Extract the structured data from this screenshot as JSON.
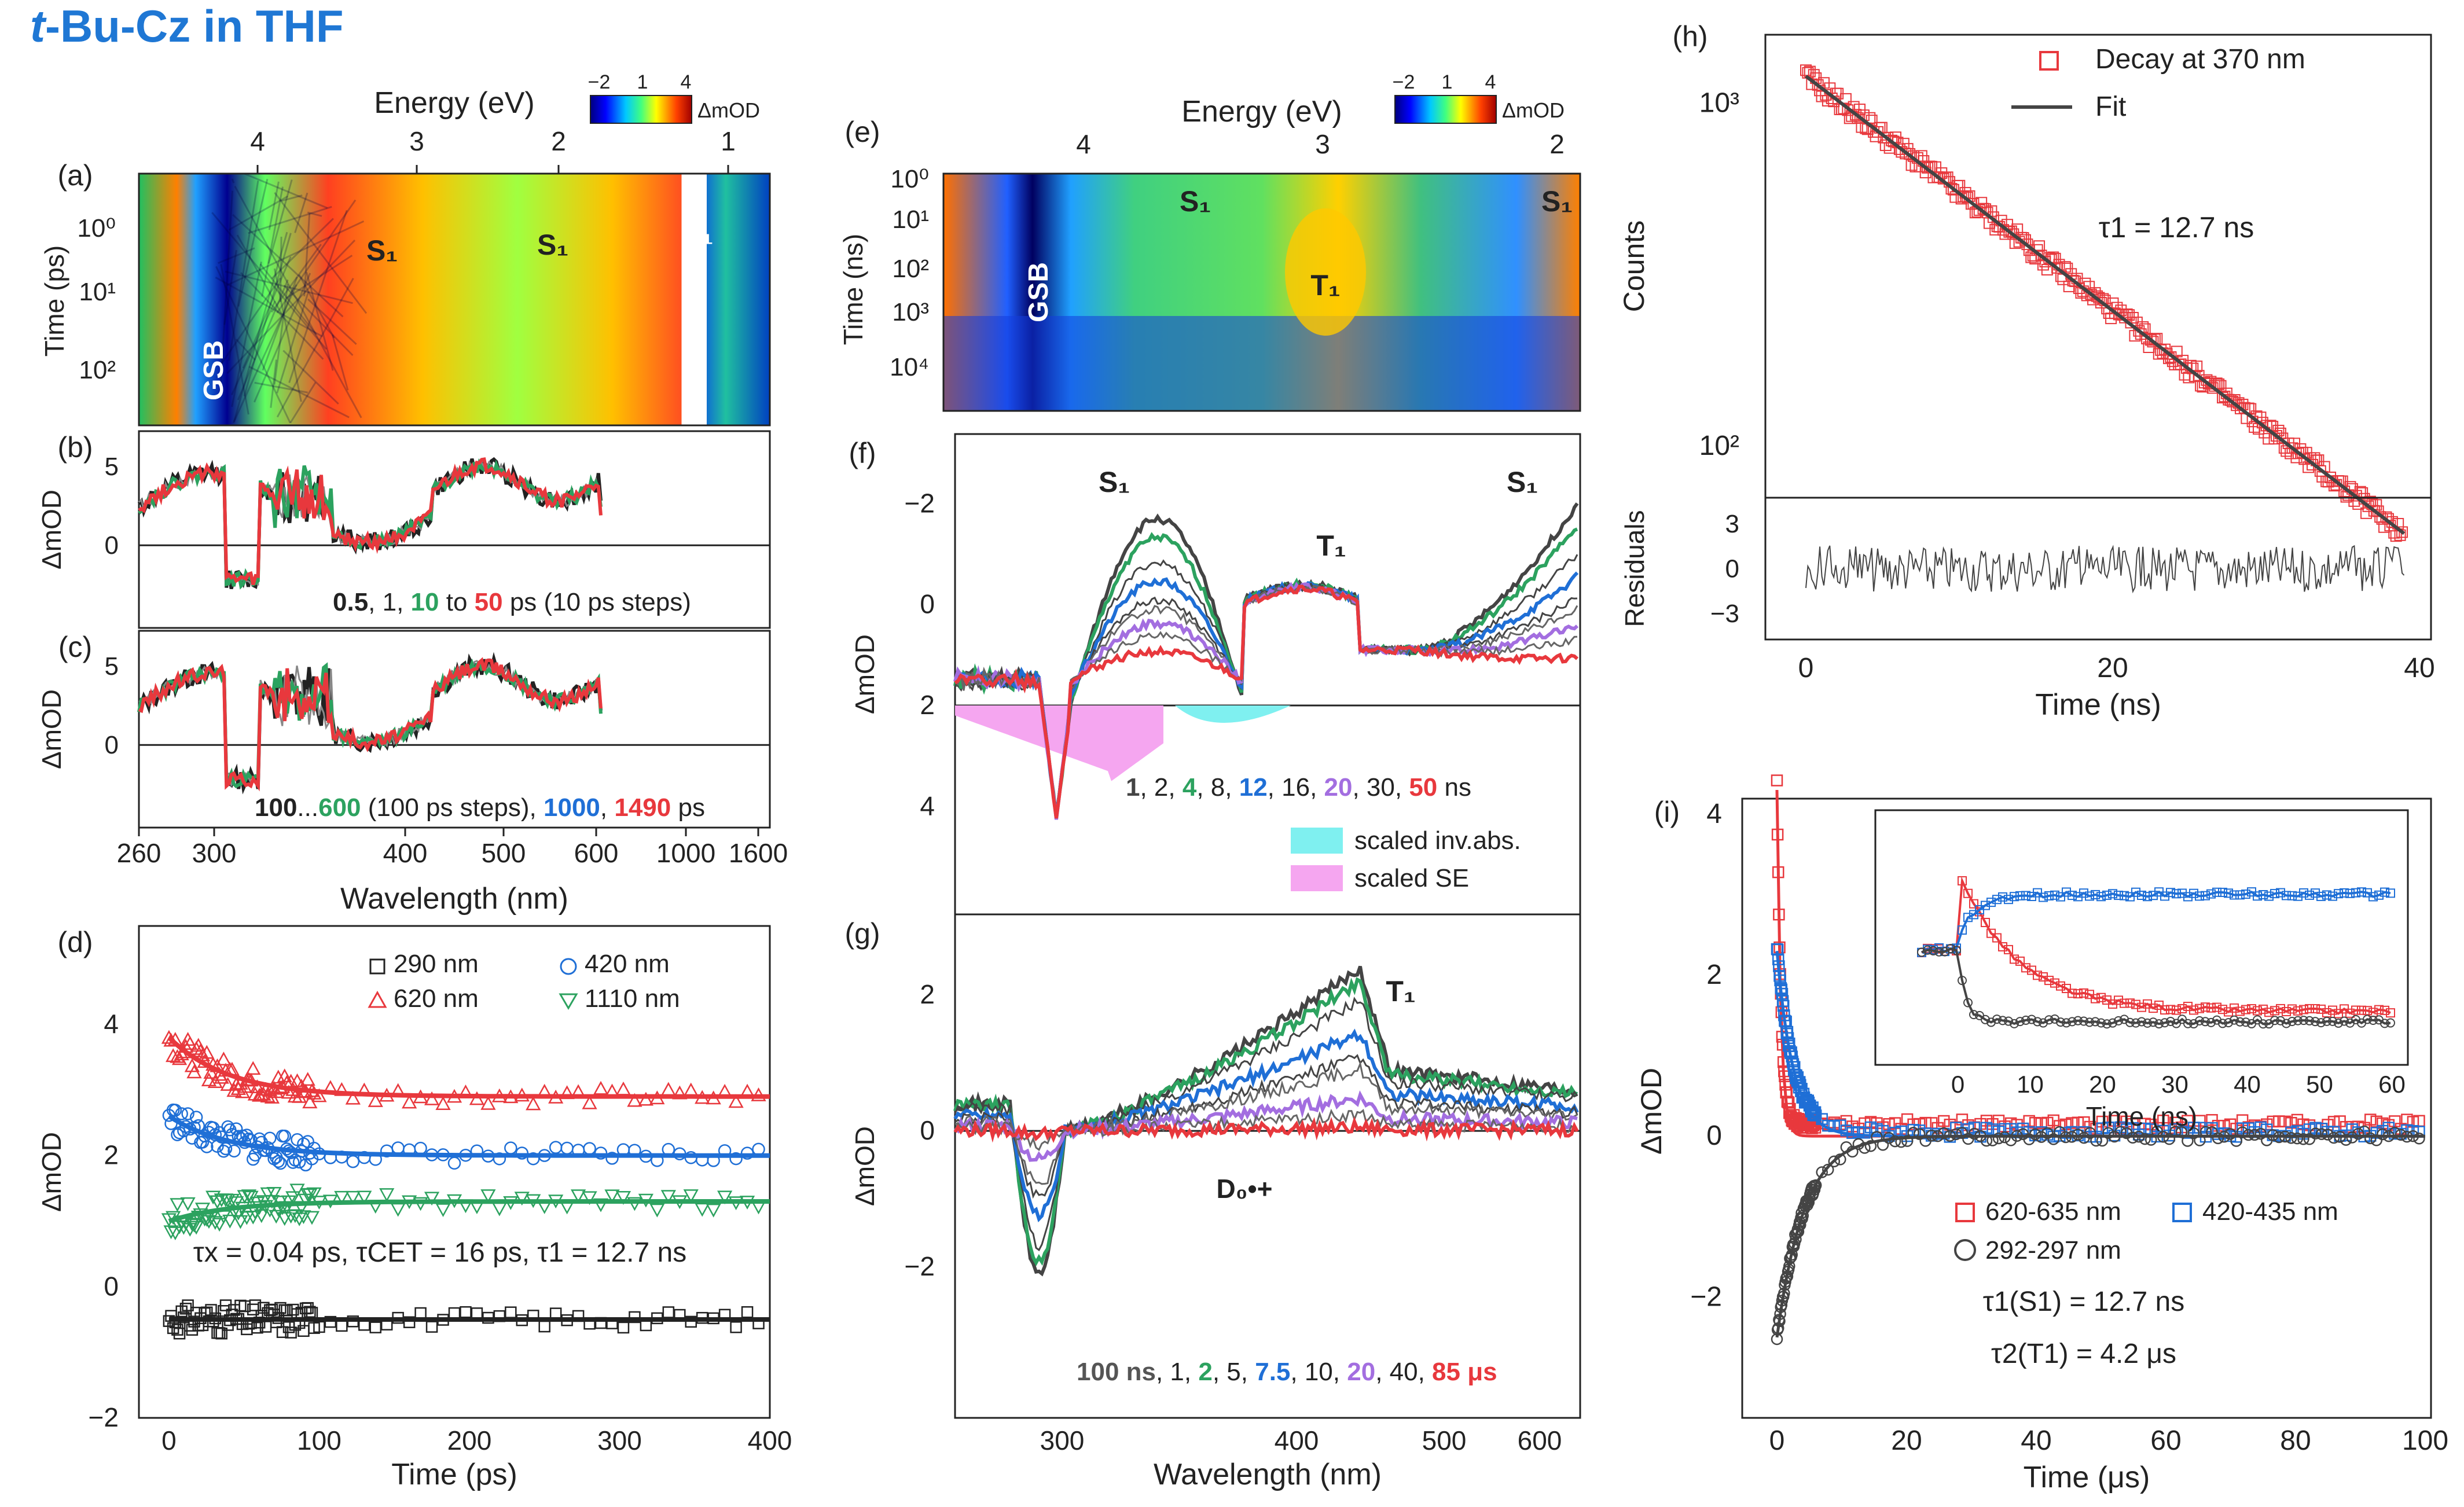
{
  "title_italic": "t",
  "title_rest": "-Bu-Cz in THF",
  "colors": {
    "black": "#222222",
    "red": "#e8383d",
    "green": "#2ca25f",
    "blue": "#1f6fd6",
    "purple": "#a36ee0",
    "grey": "#888888",
    "fit": "#444444",
    "inv": "#7ff0f0",
    "se": "#f5a6f0"
  },
  "chart_data": [
    {
      "panel": "(a)",
      "type": "heatmap",
      "title": "",
      "top_axis_label": "Energy (eV)",
      "top_ticks": [
        "4",
        "3",
        "2",
        "1"
      ],
      "ylabel": "Time (ps)",
      "y_ticks": [
        "10⁰",
        "10¹",
        "10²"
      ],
      "colorbar_label": "ΔmOD",
      "colorbar_ticks": [
        "−2",
        "1",
        "4"
      ],
      "annotations": [
        "GSB",
        "S₁",
        "S₁",
        "S₁"
      ]
    },
    {
      "panel": "(b)",
      "type": "line",
      "ylabel": "ΔmOD",
      "y_ticks": [
        "0",
        "5"
      ],
      "legend": "0.5, 1, 10 to 50 ps (10 ps steps)",
      "legend_parts": [
        "0.5",
        ", 1, ",
        "10",
        " to ",
        "50",
        " ps (10 ps steps)"
      ]
    },
    {
      "panel": "(c)",
      "type": "line",
      "ylabel": "ΔmOD",
      "y_ticks": [
        "0",
        "5"
      ],
      "xlabel": "Wavelength (nm)",
      "x_ticks": [
        "260",
        "300",
        "400",
        "500",
        "600",
        "1000",
        "1600"
      ],
      "legend_parts": [
        "100",
        "...",
        "600",
        " (100 ps steps), ",
        "1000",
        ", ",
        "1490",
        " ps"
      ]
    },
    {
      "panel": "(d)",
      "type": "scatter",
      "xlabel": "Time (ps)",
      "ylabel": "ΔmOD",
      "xlim": [
        -20,
        400
      ],
      "ylim": [
        -2,
        5.5
      ],
      "x_ticks": [
        "0",
        "100",
        "200",
        "300",
        "400"
      ],
      "y_ticks": [
        "−2",
        "0",
        "2",
        "4"
      ],
      "series": [
        {
          "name": "290 nm",
          "plateau": -0.5
        },
        {
          "name": "620 nm",
          "plateau": 2.9
        },
        {
          "name": "420 nm",
          "plateau": 2.0
        },
        {
          "name": "1110 nm",
          "plateau": 1.3
        }
      ],
      "annotation": "τx = 0.04 ps, τCET = 16 ps, τ1 = 12.7 ns"
    },
    {
      "panel": "(e)",
      "type": "heatmap",
      "top_axis_label": "Energy (eV)",
      "top_ticks": [
        "4",
        "3",
        "2"
      ],
      "ylabel": "Time (ns)",
      "y_ticks": [
        "10⁰",
        "10¹",
        "10²",
        "10³",
        "10⁴"
      ],
      "colorbar_label": "ΔmOD",
      "colorbar_ticks": [
        "−2",
        "1",
        "4"
      ],
      "annotations": [
        "GSB",
        "S₁",
        "S₁",
        "T₁"
      ]
    },
    {
      "panel": "(f)",
      "type": "line",
      "ylabel": "ΔmOD",
      "y_ticks": [
        "−2",
        "0",
        "2",
        "4"
      ],
      "legend_parts": [
        "1",
        ", 2, ",
        "4",
        ", 8, ",
        "12",
        ", 16, ",
        "20",
        ", 30, ",
        "50",
        " ns"
      ],
      "fill_legend": [
        "scaled inv.abs.",
        "scaled SE"
      ],
      "annotations": [
        "S₁",
        "T₁",
        "S₁"
      ]
    },
    {
      "panel": "(g)",
      "type": "line",
      "ylabel": "ΔmOD",
      "xlabel": "Wavelength (nm)",
      "y_ticks": [
        "−2",
        "0",
        "2"
      ],
      "x_ticks": [
        "300",
        "400",
        "500",
        "600"
      ],
      "legend_parts": [
        "100 ns",
        ", 1, ",
        "2",
        ", 5, ",
        "7.5",
        ", 10, ",
        "20",
        ", 40, ",
        "85 μs"
      ],
      "annotations": [
        "T₁",
        "D₀•+"
      ]
    },
    {
      "panel": "(h)",
      "type": "scatter",
      "ylabel": "Counts",
      "xlabel": "Time (ns)",
      "x_ticks": [
        "0",
        "20",
        "40"
      ],
      "y_ticks": [
        "10³",
        "10²"
      ],
      "legend": [
        "Decay at 370 nm",
        "Fit"
      ],
      "annotation": "τ1 = 12.7 ns",
      "tau_ns": 12.7,
      "start_counts": 1200,
      "residual_ylabel": "Residuals",
      "residual_ticks": [
        "3",
        "0",
        "−3"
      ]
    },
    {
      "panel": "(i)",
      "type": "scatter",
      "ylabel": "ΔmOD",
      "xlabel": "Time (μs)",
      "x_ticks": [
        "0",
        "20",
        "40",
        "60",
        "80",
        "100"
      ],
      "y_ticks": [
        "−2",
        "0",
        "2",
        "4"
      ],
      "series": [
        {
          "name": "620-635 nm",
          "peak": 4.3
        },
        {
          "name": "420-435 nm",
          "peak": 2.3
        },
        {
          "name": "292-297 nm",
          "peak": -2.5
        }
      ],
      "annotations": [
        "τ1(S1) = 12.7 ns",
        "τ2(T1) = 4.2 μs"
      ],
      "inset": {
        "xlabel": "Time (ns)",
        "x_ticks": [
          "0",
          "10",
          "20",
          "30",
          "40",
          "50",
          "60"
        ]
      }
    }
  ]
}
